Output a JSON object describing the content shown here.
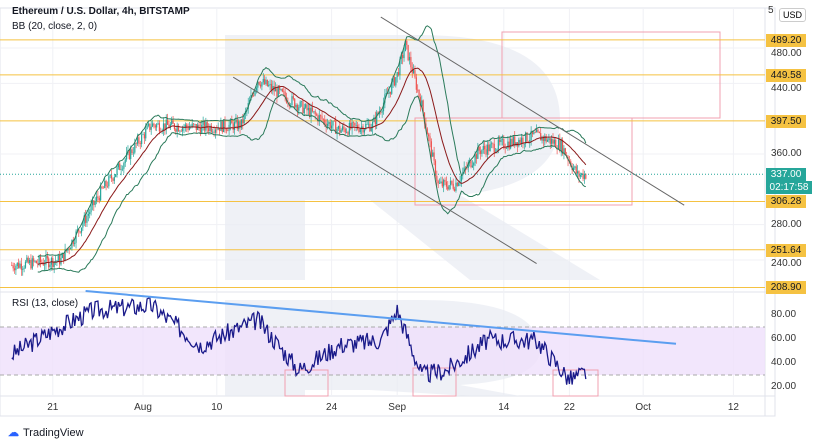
{
  "header": {
    "title": "Ethereum / U.S. Dollar, 4h, BITSTAMP",
    "indicator": "BB (20, close, 2, 0)",
    "currency": "USD",
    "top_tick": "5"
  },
  "rsi_label": "RSI (13, close)",
  "footer": {
    "brand": "TradingView"
  },
  "colors": {
    "level": "#f5c242",
    "up": "#26a69a",
    "down": "#ef5350",
    "band": "#2a7a5a",
    "basis": "#8b1a1a",
    "rsi": "#1a1a8a",
    "trend_rsi": "#5b9ef0",
    "box": "#f0a0b0"
  },
  "chart_data": [
    {
      "type": "candlestick",
      "title": "Ethereum / U.S. Dollar, 4h, BITSTAMP",
      "ylim": [
        200,
        520
      ],
      "yticks": [
        "480.00",
        "440.00",
        "360.00",
        "280.00",
        "240.00"
      ],
      "ytick_values": [
        480,
        440,
        360,
        280,
        240
      ],
      "levels": [
        {
          "value": 489.2,
          "label": "489.20"
        },
        {
          "value": 449.58,
          "label": "449.58"
        },
        {
          "value": 397.5,
          "label": "397.50"
        },
        {
          "value": 306.28,
          "label": "306.28"
        },
        {
          "value": 251.64,
          "label": "251.64"
        },
        {
          "value": 208.9,
          "label": "208.90"
        }
      ],
      "last_price": {
        "value": 337,
        "label": "337.00",
        "countdown": "02:17:58"
      },
      "price_path_day_from_aug1": [
        [
          -16,
          234
        ],
        [
          -10,
          240
        ],
        [
          -5,
          319
        ],
        [
          1,
          393
        ],
        [
          7,
          390
        ],
        [
          12,
          393
        ],
        [
          14,
          444
        ],
        [
          19,
          415
        ],
        [
          24,
          387
        ],
        [
          28,
          393
        ],
        [
          31,
          450
        ],
        [
          32,
          483
        ],
        [
          34,
          415
        ],
        [
          36,
          325
        ],
        [
          38,
          325
        ],
        [
          41,
          364
        ],
        [
          48,
          381
        ],
        [
          51,
          370
        ],
        [
          53,
          336
        ],
        [
          54,
          337
        ]
      ],
      "trendlines": [
        [
          [
            29,
            515
          ],
          [
            66,
            302
          ]
        ],
        [
          [
            11,
            447
          ],
          [
            48,
            236
          ]
        ]
      ]
    },
    {
      "type": "line",
      "title": "RSI (13, close)",
      "ylim": [
        10,
        100
      ],
      "yticks": [
        "80.00",
        "60.00",
        "40.00",
        "20.00"
      ],
      "ytick_values": [
        80,
        60,
        40,
        20
      ],
      "band": [
        30,
        70
      ],
      "rsi_path_day_from_aug1": [
        [
          -16,
          47
        ],
        [
          -11,
          67
        ],
        [
          -6,
          84
        ],
        [
          1,
          88
        ],
        [
          7,
          55
        ],
        [
          14,
          76
        ],
        [
          19,
          34
        ],
        [
          24,
          55
        ],
        [
          29,
          59
        ],
        [
          31,
          84
        ],
        [
          34,
          30
        ],
        [
          37,
          34
        ],
        [
          42,
          59
        ],
        [
          48,
          59
        ],
        [
          52,
          26
        ],
        [
          54,
          32
        ]
      ],
      "trendline": [
        [
          -7,
          100
        ],
        [
          65,
          56
        ]
      ]
    },
    {
      "xticks": [
        {
          "label": "21",
          "day": -11
        },
        {
          "label": "Aug",
          "day": 0
        },
        {
          "label": "10",
          "day": 9
        },
        {
          "label": "24",
          "day": 23
        },
        {
          "label": "Sep",
          "day": 31
        },
        {
          "label": "14",
          "day": 44
        },
        {
          "label": "22",
          "day": 52
        },
        {
          "label": "Oct",
          "day": 61
        },
        {
          "label": "12",
          "day": 72
        }
      ]
    }
  ]
}
